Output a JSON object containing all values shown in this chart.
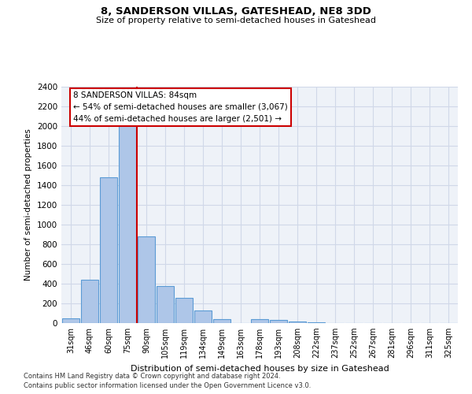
{
  "title": "8, SANDERSON VILLAS, GATESHEAD, NE8 3DD",
  "subtitle": "Size of property relative to semi-detached houses in Gateshead",
  "xlabel": "Distribution of semi-detached houses by size in Gateshead",
  "ylabel": "Number of semi-detached properties",
  "bar_labels": [
    "31sqm",
    "46sqm",
    "60sqm",
    "75sqm",
    "90sqm",
    "105sqm",
    "119sqm",
    "134sqm",
    "149sqm",
    "163sqm",
    "178sqm",
    "193sqm",
    "208sqm",
    "222sqm",
    "237sqm",
    "252sqm",
    "267sqm",
    "281sqm",
    "296sqm",
    "311sqm",
    "325sqm"
  ],
  "bar_values": [
    45,
    440,
    1480,
    2010,
    880,
    375,
    255,
    130,
    40,
    0,
    40,
    30,
    20,
    10,
    0,
    0,
    0,
    0,
    0,
    0,
    0
  ],
  "bar_color": "#aec6e8",
  "bar_edge_color": "#5b9bd5",
  "annotation_text": "8 SANDERSON VILLAS: 84sqm\n← 54% of semi-detached houses are smaller (3,067)\n44% of semi-detached houses are larger (2,501) →",
  "annotation_box_color": "#ffffff",
  "annotation_box_edge": "#cc0000",
  "red_line_color": "#cc0000",
  "red_line_x": 3.5,
  "ylim": [
    0,
    2400
  ],
  "yticks": [
    0,
    200,
    400,
    600,
    800,
    1000,
    1200,
    1400,
    1600,
    1800,
    2000,
    2200,
    2400
  ],
  "grid_color": "#d0d8e8",
  "background_color": "#eef2f8",
  "footer1": "Contains HM Land Registry data © Crown copyright and database right 2024.",
  "footer2": "Contains public sector information licensed under the Open Government Licence v3.0."
}
